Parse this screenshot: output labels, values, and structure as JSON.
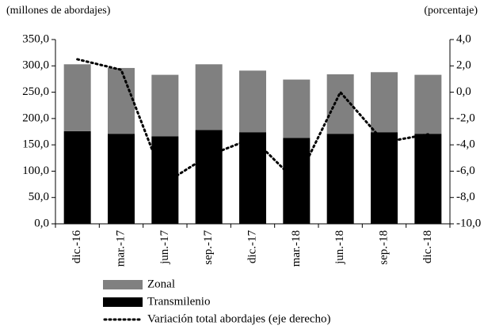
{
  "chart_data": {
    "type": "bar",
    "ylabel": "(millones de abordajes)",
    "y2label": "(porcentaje)",
    "categories": [
      "dic.-16",
      "mar.-17",
      "jun.-17",
      "sep.-17",
      "dic.-17",
      "mar.-18",
      "jun.-18",
      "sep.-18",
      "dic.-18"
    ],
    "series": [
      {
        "name": "Zonal",
        "type": "bar",
        "color": "#808080",
        "values": [
          127,
          125,
          117,
          125,
          117,
          111,
          113,
          114,
          112
        ]
      },
      {
        "name": "Transmilenio",
        "type": "bar",
        "color": "#000000",
        "values": [
          176,
          171,
          166,
          178,
          174,
          163,
          171,
          174,
          171
        ]
      },
      {
        "name": "Variación total abordajes (eje derecho)",
        "type": "line",
        "axis": "y2",
        "color": "#000000",
        "values": [
          2.5,
          1.7,
          -6.9,
          -4.8,
          -3.5,
          -6.8,
          0.0,
          -3.8,
          -3.2
        ]
      }
    ],
    "ylim": [
      0,
      350
    ],
    "yticks": [
      {
        "value": 0,
        "label": "0,0"
      },
      {
        "value": 50,
        "label": "50,0"
      },
      {
        "value": 100,
        "label": "100,0"
      },
      {
        "value": 150,
        "label": "150,0"
      },
      {
        "value": 200,
        "label": "200,0"
      },
      {
        "value": 250,
        "label": "250,0"
      },
      {
        "value": 300,
        "label": "300,0"
      },
      {
        "value": 350,
        "label": "350,0"
      }
    ],
    "y2lim": [
      -10,
      4
    ],
    "y2ticks": [
      {
        "value": -10,
        "label": "-10,0"
      },
      {
        "value": -8,
        "label": "-8,0"
      },
      {
        "value": -6,
        "label": "-6,0"
      },
      {
        "value": -4,
        "label": "-4,0"
      },
      {
        "value": -2,
        "label": "-2,0"
      },
      {
        "value": 0,
        "label": "0,0"
      },
      {
        "value": 2,
        "label": "2,0"
      },
      {
        "value": 4,
        "label": "4,0"
      }
    ],
    "grid": false
  }
}
